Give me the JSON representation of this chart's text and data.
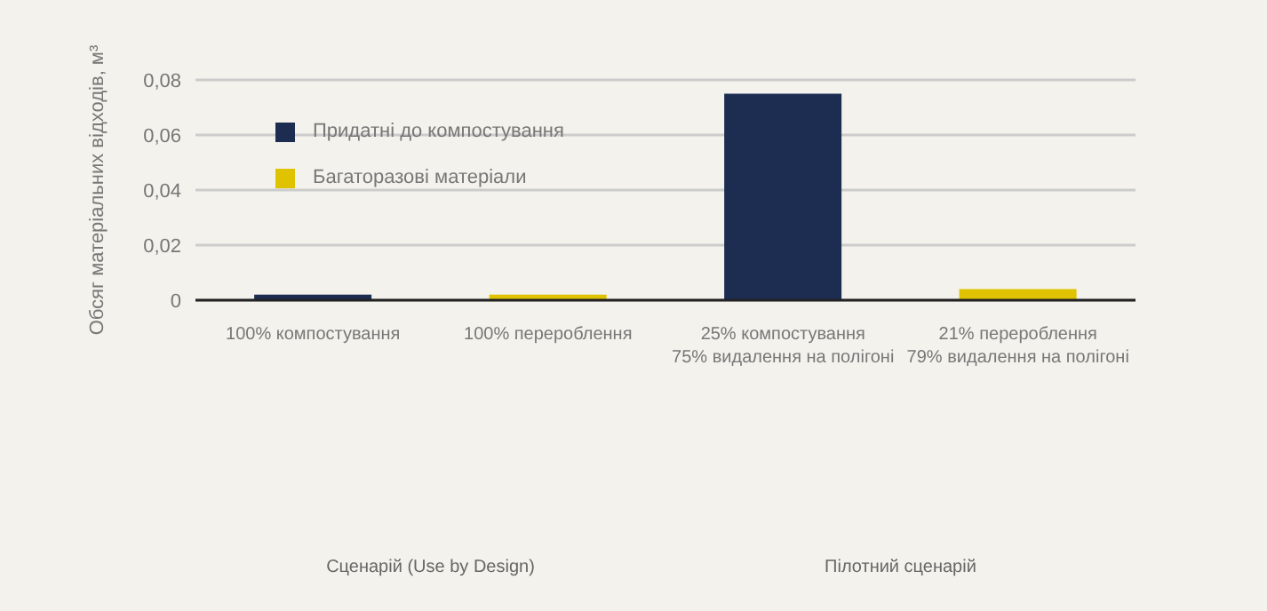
{
  "chart_data": {
    "type": "bar",
    "ylabel": "Обсяг матеріальних відходів, м³",
    "categories": [
      "100% компостування",
      "100% перероблення",
      "25% компостування\n75% видалення на полігоні",
      "21% перероблення\n79% видалення на полігоні"
    ],
    "series": [
      {
        "name": "Придатні до компостування",
        "color": "#1d2d52",
        "values": [
          0.002,
          null,
          0.075,
          null
        ]
      },
      {
        "name": "Багаторазові матеріали",
        "color": "#e0c300",
        "values": [
          null,
          0.002,
          null,
          0.004
        ]
      }
    ],
    "ylim": [
      0,
      0.08
    ],
    "yticks": [
      {
        "value": 0,
        "label": "0"
      },
      {
        "value": 0.02,
        "label": "0,02"
      },
      {
        "value": 0.04,
        "label": "0,04"
      },
      {
        "value": 0.06,
        "label": "0,06"
      },
      {
        "value": 0.08,
        "label": "0,08"
      }
    ],
    "grid": "y",
    "legend": "top left",
    "annotations": [
      "Сценарій (Use by Design)",
      "Пілотний сценарій"
    ]
  }
}
